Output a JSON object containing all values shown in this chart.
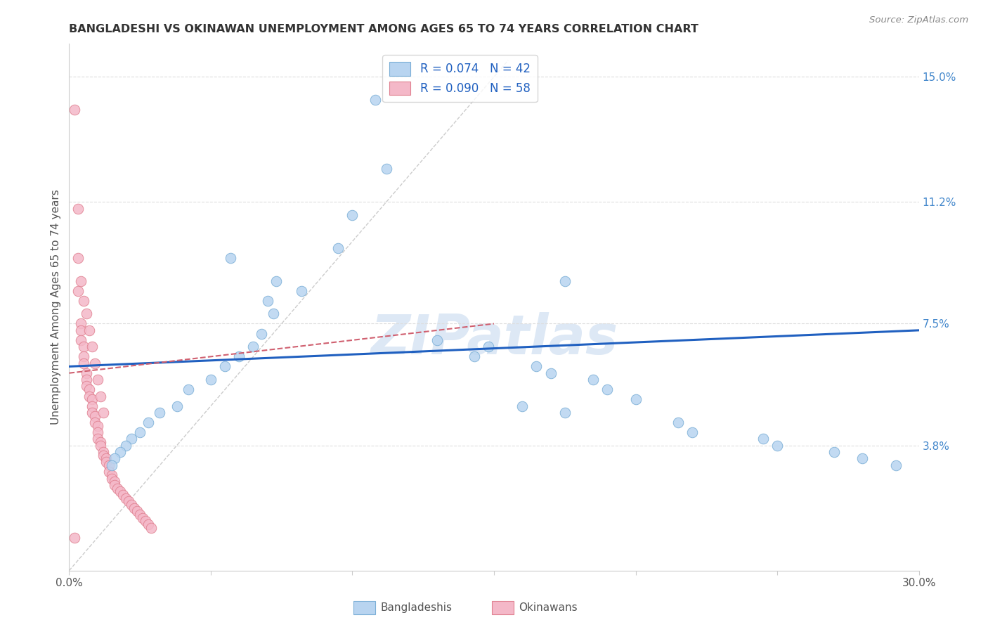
{
  "title": "BANGLADESHI VS OKINAWAN UNEMPLOYMENT AMONG AGES 65 TO 74 YEARS CORRELATION CHART",
  "source": "Source: ZipAtlas.com",
  "ylabel": "Unemployment Among Ages 65 to 74 years",
  "xlim": [
    0,
    0.3
  ],
  "ylim": [
    0,
    0.16
  ],
  "right_yticks": [
    0.038,
    0.075,
    0.112,
    0.15
  ],
  "right_yticklabels": [
    "3.8%",
    "7.5%",
    "11.2%",
    "15.0%"
  ],
  "legend_r1": "R = 0.074",
  "legend_n1": "N = 42",
  "legend_r2": "R = 0.090",
  "legend_n2": "N = 58",
  "blue_color": "#b8d4f0",
  "blue_edge": "#7aaed6",
  "pink_color": "#f4b8c8",
  "pink_edge": "#e08090",
  "trend_blue": "#2060c0",
  "trend_pink": "#d06070",
  "watermark": "ZIPatlas",
  "blue_trend_x0": 0.0,
  "blue_trend_y0": 0.062,
  "blue_trend_x1": 0.3,
  "blue_trend_y1": 0.073,
  "pink_trend_x0": 0.0,
  "pink_trend_y0": 0.06,
  "pink_trend_x1": 0.15,
  "pink_trend_y1": 0.075,
  "blue_scatter_x": [
    0.057,
    0.073,
    0.082,
    0.07,
    0.072,
    0.068,
    0.065,
    0.06,
    0.055,
    0.05,
    0.042,
    0.038,
    0.032,
    0.028,
    0.025,
    0.022,
    0.02,
    0.018,
    0.016,
    0.015,
    0.1,
    0.112,
    0.108,
    0.095,
    0.13,
    0.148,
    0.143,
    0.165,
    0.17,
    0.185,
    0.19,
    0.2,
    0.16,
    0.175,
    0.215,
    0.22,
    0.245,
    0.25,
    0.27,
    0.28,
    0.292,
    0.175
  ],
  "blue_scatter_y": [
    0.095,
    0.088,
    0.085,
    0.082,
    0.078,
    0.072,
    0.068,
    0.065,
    0.062,
    0.058,
    0.055,
    0.05,
    0.048,
    0.045,
    0.042,
    0.04,
    0.038,
    0.036,
    0.034,
    0.032,
    0.108,
    0.122,
    0.143,
    0.098,
    0.07,
    0.068,
    0.065,
    0.062,
    0.06,
    0.058,
    0.055,
    0.052,
    0.05,
    0.048,
    0.045,
    0.042,
    0.04,
    0.038,
    0.036,
    0.034,
    0.032,
    0.088
  ],
  "pink_scatter_x": [
    0.002,
    0.003,
    0.003,
    0.004,
    0.004,
    0.004,
    0.005,
    0.005,
    0.005,
    0.006,
    0.006,
    0.006,
    0.007,
    0.007,
    0.008,
    0.008,
    0.008,
    0.009,
    0.009,
    0.01,
    0.01,
    0.01,
    0.011,
    0.011,
    0.012,
    0.012,
    0.013,
    0.013,
    0.014,
    0.014,
    0.015,
    0.015,
    0.016,
    0.016,
    0.017,
    0.018,
    0.019,
    0.02,
    0.021,
    0.022,
    0.023,
    0.024,
    0.025,
    0.026,
    0.027,
    0.028,
    0.029,
    0.003,
    0.004,
    0.005,
    0.006,
    0.007,
    0.008,
    0.009,
    0.01,
    0.011,
    0.012,
    0.002
  ],
  "pink_scatter_y": [
    0.14,
    0.11,
    0.085,
    0.075,
    0.073,
    0.07,
    0.068,
    0.065,
    0.063,
    0.06,
    0.058,
    0.056,
    0.055,
    0.053,
    0.052,
    0.05,
    0.048,
    0.047,
    0.045,
    0.044,
    0.042,
    0.04,
    0.039,
    0.038,
    0.036,
    0.035,
    0.034,
    0.033,
    0.032,
    0.03,
    0.029,
    0.028,
    0.027,
    0.026,
    0.025,
    0.024,
    0.023,
    0.022,
    0.021,
    0.02,
    0.019,
    0.018,
    0.017,
    0.016,
    0.015,
    0.014,
    0.013,
    0.095,
    0.088,
    0.082,
    0.078,
    0.073,
    0.068,
    0.063,
    0.058,
    0.053,
    0.048,
    0.01
  ]
}
